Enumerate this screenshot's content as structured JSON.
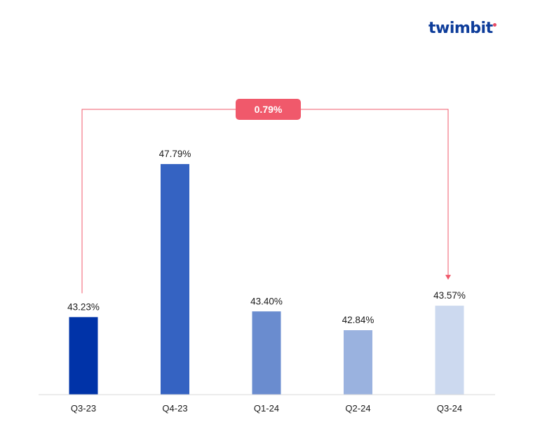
{
  "logo": {
    "text": "twimbit"
  },
  "chart_data": {
    "type": "bar",
    "categories": [
      "Q3-23",
      "Q4-23",
      "Q1-24",
      "Q2-24",
      "Q3-24"
    ],
    "values": [
      43.23,
      47.79,
      43.4,
      42.84,
      43.57
    ],
    "value_labels": [
      "43.23%",
      "47.79%",
      "43.40%",
      "42.84%",
      "43.57%"
    ],
    "bar_colors": [
      "#0033a8",
      "#3563c2",
      "#6a8ccf",
      "#9ab2df",
      "#ccd9ef"
    ],
    "annotation": {
      "text": "0.79%",
      "from_category": "Q3-23",
      "to_category": "Q3-24",
      "color": "#f0596b"
    },
    "title": "",
    "xlabel": "",
    "ylabel": "",
    "ylim": [
      40.92,
      48.0
    ],
    "grid": false
  }
}
